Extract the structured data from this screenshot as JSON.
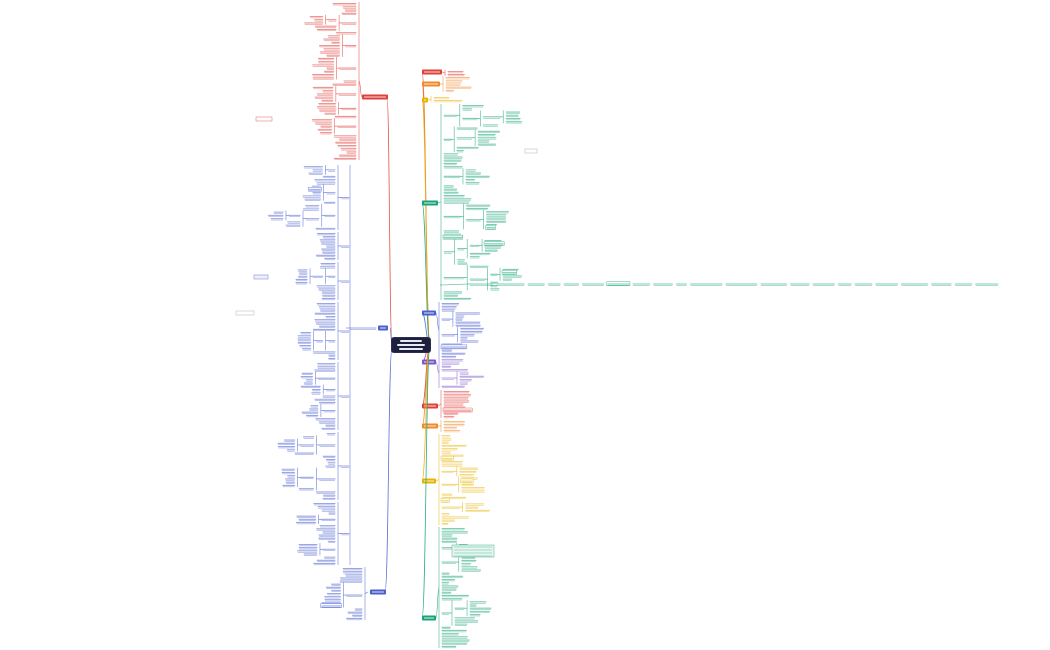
{
  "diagram": {
    "type": "mind-map",
    "text_legible": false,
    "center": {
      "color": "#1d1f3f"
    },
    "colors": {
      "red": "#e0403a",
      "orange": "#f08a2a",
      "yellow": "#e8b400",
      "green": "#1aa37a",
      "blue": "#4a5fd0",
      "purple": "#7b58c8",
      "gray": "#9aa0a6"
    },
    "branches": [
      {
        "id": "l-red",
        "side": "left",
        "color": "#e0403a"
      },
      {
        "id": "l-blue",
        "side": "left",
        "color": "#4a5fd0"
      },
      {
        "id": "l-blue2",
        "side": "left",
        "color": "#4a5fd0"
      },
      {
        "id": "r-red1",
        "side": "right",
        "color": "#e0403a"
      },
      {
        "id": "r-orange1",
        "side": "right",
        "color": "#f08a2a"
      },
      {
        "id": "r-yellow1",
        "side": "right",
        "color": "#e8b400"
      },
      {
        "id": "r-green1",
        "side": "right",
        "color": "#1aa37a"
      },
      {
        "id": "r-blue1",
        "side": "right",
        "color": "#4a5fd0"
      },
      {
        "id": "r-purple",
        "side": "right",
        "color": "#7b58c8"
      },
      {
        "id": "r-red2",
        "side": "right",
        "color": "#e0403a"
      },
      {
        "id": "r-orange2",
        "side": "right",
        "color": "#f08a2a"
      },
      {
        "id": "r-yellow2",
        "side": "right",
        "color": "#e8b400"
      },
      {
        "id": "r-green2",
        "side": "right",
        "color": "#1aa37a"
      }
    ]
  }
}
